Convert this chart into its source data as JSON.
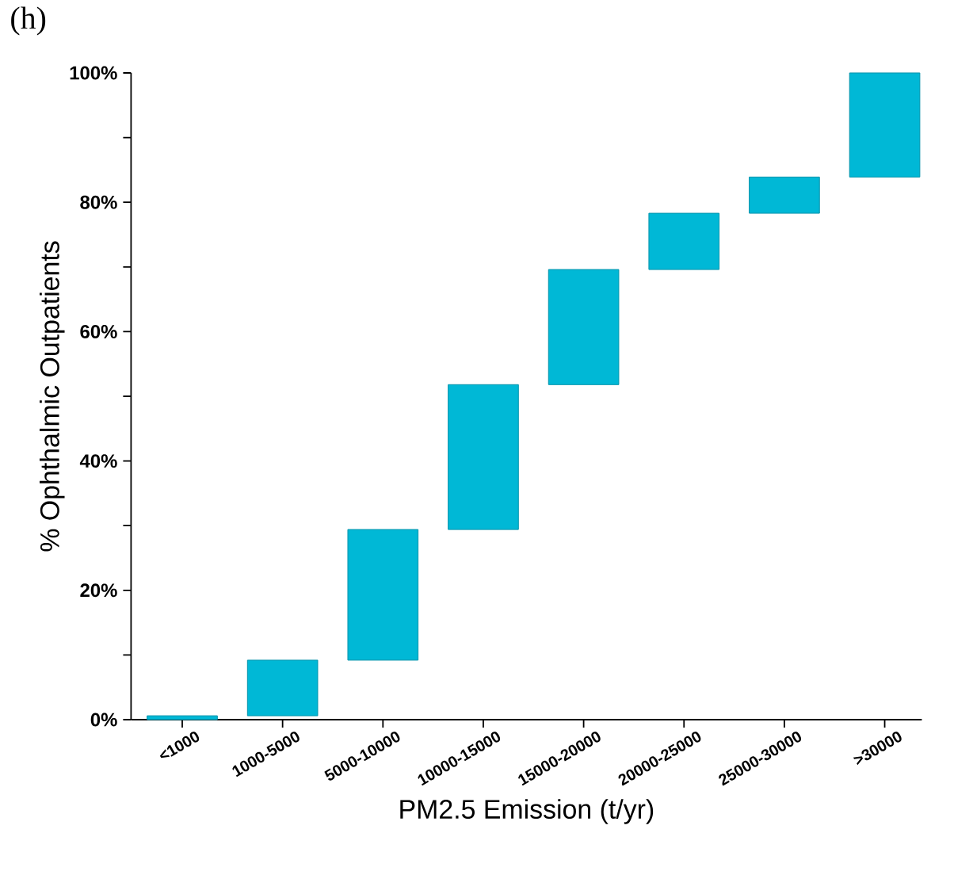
{
  "chart_data": {
    "type": "bar",
    "title": "(h)",
    "xlabel": "PM2.5 Emission (t/yr)",
    "ylabel": "% Ophthalmic Outpatients",
    "categories": [
      "<1000",
      "1000-5000",
      "5000-10000",
      "10000-15000",
      "15000-20000",
      "20000-25000",
      "25000-30000",
      ">30000"
    ],
    "base": [
      0,
      0.6,
      9.2,
      29.4,
      51.8,
      69.6,
      78.3,
      83.9
    ],
    "values": [
      0.6,
      8.6,
      20.2,
      22.4,
      17.8,
      8.7,
      5.6,
      16.1
    ],
    "color": "#00b8d6",
    "ylim": [
      0,
      100
    ],
    "yticks": [
      {
        "value": 0,
        "label": "0%"
      },
      {
        "value": 10,
        "label": null
      },
      {
        "value": 20,
        "label": "20%"
      },
      {
        "value": 30,
        "label": null
      },
      {
        "value": 40,
        "label": "40%"
      },
      {
        "value": 50,
        "label": null
      },
      {
        "value": 60,
        "label": "60%"
      },
      {
        "value": 70,
        "label": null
      },
      {
        "value": 80,
        "label": "80%"
      },
      {
        "value": 90,
        "label": null
      },
      {
        "value": 100,
        "label": "100%"
      }
    ]
  }
}
